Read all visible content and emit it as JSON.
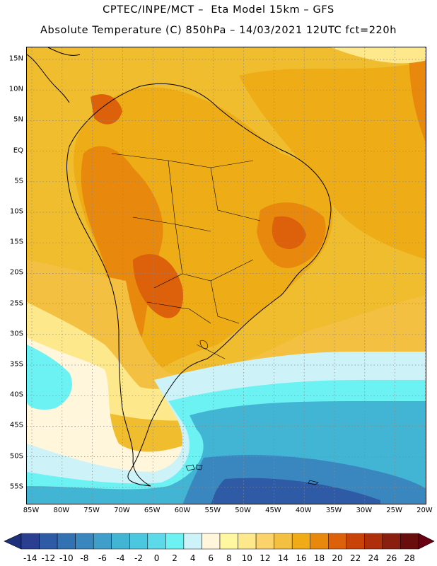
{
  "header": {
    "line1": "CPTEC/INPE/MCT –  Eta Model 15km – GFS",
    "line2": "Absolute Temperature (C) 850hPa – 14/03/2021 12UTC fct=220h"
  },
  "map": {
    "lat_labels": [
      "15N",
      "10N",
      "5N",
      "EQ",
      "5S",
      "10S",
      "15S",
      "20S",
      "25S",
      "30S",
      "35S",
      "40S",
      "45S",
      "50S",
      "55S"
    ],
    "lon_labels": [
      "85W",
      "80W",
      "75W",
      "70W",
      "65W",
      "60W",
      "55W",
      "50W",
      "45W",
      "40W",
      "35W",
      "30W",
      "25W",
      "20W"
    ]
  },
  "colorbar": {
    "labels": [
      "-14",
      "-12",
      "-10",
      "-8",
      "-6",
      "-4",
      "-2",
      "0",
      "2",
      "4",
      "6",
      "8",
      "10",
      "12",
      "14",
      "16",
      "18",
      "20",
      "22",
      "24",
      "26",
      "28"
    ],
    "colors": [
      "#2a3f92",
      "#2f5aa5",
      "#3272b2",
      "#3a87c0",
      "#3f9fca",
      "#42b5d4",
      "#4bc8e0",
      "#5ddaea",
      "#6df2f4",
      "#cdf2f8",
      "#fff6dc",
      "#fff8a0",
      "#fde88c",
      "#fad36a",
      "#f4c042",
      "#f0ab17",
      "#e8890e",
      "#dd600a",
      "#c94208",
      "#b02f0b",
      "#8b1f0f",
      "#6a0d0d"
    ],
    "left_arrow_color": "#1e2f7c",
    "right_arrow_color": "#6a0012"
  }
}
